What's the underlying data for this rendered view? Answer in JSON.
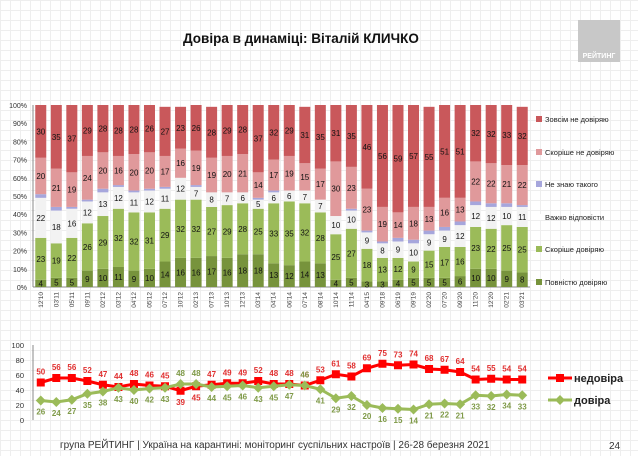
{
  "title": "Довіра в динаміці: Віталій КЛИЧКО",
  "logo": "РЕЙТИНГ",
  "footer": "група РЕЙТИНГ | Україна на карантині: моніторинг суспільних настроїв | 26-28 березня 2021",
  "page_number": "24",
  "chart_data": [
    {
      "type": "bar",
      "stacked": true,
      "ylim": [
        0,
        100
      ],
      "yticks": [
        "0%",
        "10%",
        "20%",
        "30%",
        "40%",
        "50%",
        "60%",
        "70%",
        "80%",
        "90%",
        "100%"
      ],
      "legend": "right",
      "categories": [
        "12'10",
        "03'11",
        "05'11",
        "09'11",
        "02'12",
        "03'12",
        "04'12",
        "05'12",
        "07'12",
        "10'12",
        "02'13",
        "07'13",
        "10'13",
        "12'13",
        "03'14",
        "04'14",
        "06'14",
        "07'14",
        "08'14",
        "10'14",
        "11'14",
        "04'15",
        "09'18",
        "06'19",
        "09'19",
        "02'20",
        "07'20",
        "09'20",
        "11'20",
        "12'20",
        "02'21",
        "03'21"
      ],
      "series": [
        {
          "name": "Повністю довіряю",
          "color": "#77933c",
          "values": [
            4,
            5,
            5,
            9,
            10,
            11,
            9,
            10,
            14,
            16,
            16,
            17,
            16,
            18,
            18,
            13,
            12,
            14,
            13,
            4,
            5,
            3,
            3,
            4,
            5,
            5,
            5,
            6,
            10,
            10,
            9,
            8
          ]
        },
        {
          "name": "Скоріше довіряю",
          "color": "#9bbb59",
          "values": [
            23,
            19,
            22,
            26,
            29,
            32,
            32,
            31,
            29,
            32,
            32,
            27,
            29,
            28,
            25,
            33,
            35,
            32,
            28,
            25,
            27,
            18,
            13,
            12,
            9,
            15,
            17,
            16,
            23,
            22,
            25,
            25
          ]
        },
        {
          "name": "Важко відповісти",
          "color": "#f2f2f2",
          "values": [
            22,
            18,
            16,
            12,
            13,
            12,
            11,
            12,
            11,
            12,
            7,
            8,
            7,
            6,
            5,
            6,
            6,
            7,
            7,
            10,
            10,
            9,
            8,
            9,
            10,
            9,
            9,
            12,
            12,
            12,
            10,
            11
          ]
        },
        {
          "name": "Не знаю такого",
          "color": "#a6a6dc",
          "values": [
            2,
            2,
            1,
            1,
            2,
            1,
            1,
            1,
            1,
            null,
            1,
            null,
            null,
            null,
            1,
            1,
            null,
            null,
            null,
            null,
            1,
            1,
            1,
            2,
            2,
            2,
            2,
            2,
            2,
            2,
            2,
            1
          ]
        },
        {
          "name": "Скоріше не довіряю",
          "color": "#e0999b",
          "values": [
            20,
            21,
            19,
            24,
            20,
            16,
            20,
            20,
            17,
            16,
            19,
            19,
            20,
            21,
            14,
            17,
            19,
            15,
            17,
            30,
            23,
            23,
            19,
            14,
            18,
            13,
            16,
            13,
            22,
            22,
            21,
            22
          ]
        },
        {
          "name": "Зовсім не довіряю",
          "color": "#c9585b",
          "values": [
            30,
            35,
            37,
            29,
            28,
            28,
            28,
            26,
            27,
            23,
            26,
            28,
            29,
            28,
            37,
            32,
            29,
            31,
            35,
            31,
            35,
            46,
            56,
            59,
            57,
            55,
            51,
            51,
            32,
            32,
            33,
            32
          ]
        }
      ]
    },
    {
      "type": "line",
      "ylim": [
        0,
        100
      ],
      "yticks": [
        "0",
        "20",
        "40",
        "60",
        "80",
        "100"
      ],
      "legend": "right",
      "series": [
        {
          "name": "недовіра",
          "color": "#ff0000",
          "marker": "square",
          "values": [
            50,
            56,
            56,
            52,
            47,
            44,
            48,
            46,
            45,
            39,
            45,
            47,
            49,
            49,
            52,
            48,
            48,
            46,
            53,
            61,
            58,
            69,
            75,
            73,
            74,
            68,
            67,
            64,
            54,
            55,
            54,
            54
          ]
        },
        {
          "name": "довіра",
          "color": "#9bbb59",
          "marker": "diamond",
          "values": [
            26,
            24,
            27,
            35,
            38,
            43,
            40,
            42,
            43,
            48,
            48,
            44,
            45,
            46,
            43,
            45,
            47,
            46,
            41,
            29,
            32,
            20,
            16,
            15,
            14,
            21,
            22,
            21,
            33,
            32,
            34,
            33
          ]
        }
      ]
    }
  ]
}
